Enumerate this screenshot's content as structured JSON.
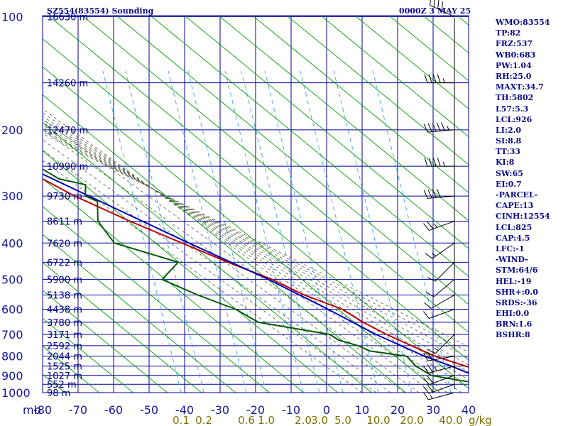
{
  "header": {
    "station": "SZ554(83554) Sounding",
    "time": "0000Z  3 MAY 25"
  },
  "indices": [
    "WMO:83554",
    "TP:82",
    "FRZ:537",
    "WB0:683",
    "PW:1.04",
    "RH:25.0",
    "MAXT:34.7",
    "TH:5802",
    "L57:5.3",
    "LCL:926",
    "LI:2.0",
    "SI:8.8",
    "TT:33",
    "KI:8",
    "SW:65",
    "EI:0.7",
    "-PARCEL-",
    "CAPE:13",
    "CINH:12554",
    "LCL:825",
    "CAP:4.5",
    "LFC:-1",
    "-WIND-",
    "STM:64/6",
    "HEL:-19",
    "SHR+:0.0",
    "SRDS:-36",
    "EHI:0.0",
    "BRN:1.6",
    "BSHR:8"
  ],
  "chart_data": {
    "type": "skew-t log-p sounding",
    "x_unit": "mb",
    "pressure_levels": [
      100,
      200,
      300,
      400,
      500,
      600,
      700,
      800,
      900,
      1000
    ],
    "temperature_ticks": [
      -80,
      -70,
      -60,
      -50,
      -40,
      -30,
      -20,
      -10,
      0,
      10,
      20,
      30,
      40
    ],
    "mixing_ratio_labels": [
      "0.1",
      "0.2",
      "0.6",
      "1.0",
      "2.0",
      "3.0",
      "5.0",
      "10.0",
      "20.0",
      "40.0"
    ],
    "mixing_ratio_unit": "g/kg",
    "height_labels": [
      {
        "p": 100,
        "text": "16630 m"
      },
      {
        "p": 150,
        "text": "14260 m"
      },
      {
        "p": 200,
        "text": "12470 m"
      },
      {
        "p": 250,
        "text": "10990 m"
      },
      {
        "p": 300,
        "text": "9730 m"
      },
      {
        "p": 350,
        "text": "8611 m"
      },
      {
        "p": 400,
        "text": "7620 m"
      },
      {
        "p": 450,
        "text": "6722 m"
      },
      {
        "p": 500,
        "text": "5900 m"
      },
      {
        "p": 550,
        "text": "5138 m"
      },
      {
        "p": 600,
        "text": "4438 m"
      },
      {
        "p": 650,
        "text": "3780 m"
      },
      {
        "p": 700,
        "text": "3171 m"
      },
      {
        "p": 750,
        "text": "2592 m"
      },
      {
        "p": 800,
        "text": "2044 m"
      },
      {
        "p": 850,
        "text": "1525 m"
      },
      {
        "p": 900,
        "text": "1027 m"
      },
      {
        "p": 950,
        "text": "552 m"
      },
      {
        "p": 1000,
        "text": "98 m"
      }
    ],
    "series": [
      {
        "color": "#c00000",
        "points": [
          [
            1000,
            21
          ],
          [
            990,
            26
          ],
          [
            975,
            29
          ],
          [
            950,
            26
          ],
          [
            925,
            24
          ],
          [
            900,
            22
          ],
          [
            875,
            19
          ],
          [
            850,
            16
          ],
          [
            800,
            10
          ],
          [
            750,
            6
          ],
          [
            700,
            2
          ],
          [
            650,
            -1.5
          ],
          [
            600,
            -4
          ],
          [
            550,
            -11
          ],
          [
            500,
            -16
          ],
          [
            450,
            -24
          ],
          [
            400,
            -32
          ],
          [
            350,
            -41
          ],
          [
            300,
            -50
          ],
          [
            250,
            -58
          ],
          [
            200,
            -66
          ],
          [
            150,
            -73
          ],
          [
            100,
            -76
          ]
        ]
      },
      {
        "color": "#0000c0",
        "points": [
          [
            1000,
            30
          ],
          [
            975,
            27
          ],
          [
            950,
            23
          ],
          [
            925,
            20
          ],
          [
            900,
            16
          ],
          [
            850,
            12
          ],
          [
            800,
            7
          ],
          [
            700,
            -1
          ],
          [
            600,
            -8
          ],
          [
            500,
            -17
          ],
          [
            400,
            -30
          ],
          [
            300,
            -46
          ],
          [
            250,
            -56
          ],
          [
            200,
            -68
          ],
          [
            150,
            -85
          ]
        ]
      },
      {
        "color": "#005a00",
        "points": [
          [
            1000,
            16.5
          ],
          [
            990,
            16
          ],
          [
            950,
            17
          ],
          [
            925,
            10
          ],
          [
            900,
            4
          ],
          [
            850,
            2
          ],
          [
            800,
            2
          ],
          [
            775,
            -7
          ],
          [
            750,
            -9
          ],
          [
            725,
            -13
          ],
          [
            700,
            -14
          ],
          [
            650,
            -31
          ],
          [
            600,
            -34
          ],
          [
            550,
            -41
          ],
          [
            500,
            -47
          ],
          [
            450,
            -38
          ],
          [
            400,
            -51
          ],
          [
            350,
            -50
          ],
          [
            310,
            -45
          ],
          [
            300,
            -47
          ],
          [
            280,
            -44
          ],
          [
            270,
            -50
          ],
          [
            255,
            -52
          ],
          [
            240,
            -62
          ],
          [
            225,
            -59
          ],
          [
            215,
            -63
          ],
          [
            200,
            -63
          ],
          [
            190,
            -64
          ],
          [
            180,
            -74
          ],
          [
            170,
            -71
          ],
          [
            162,
            -80
          ],
          [
            150,
            -84
          ]
        ]
      }
    ],
    "winds": [
      {
        "p": 1000,
        "dir": 255,
        "spd": 15
      },
      {
        "p": 950,
        "dir": 250,
        "spd": 20
      },
      {
        "p": 900,
        "dir": 250,
        "spd": 20
      },
      {
        "p": 850,
        "dir": 255,
        "spd": 25
      },
      {
        "p": 800,
        "dir": 260,
        "spd": 20
      },
      {
        "p": 700,
        "dir": 225,
        "spd": 15
      },
      {
        "p": 600,
        "dir": 250,
        "spd": 10
      },
      {
        "p": 550,
        "dir": 240,
        "spd": 10
      },
      {
        "p": 500,
        "dir": 230,
        "spd": 10
      },
      {
        "p": 450,
        "dir": 225,
        "spd": 10
      },
      {
        "p": 400,
        "dir": 235,
        "spd": 15
      },
      {
        "p": 350,
        "dir": 250,
        "spd": 25
      },
      {
        "p": 300,
        "dir": 265,
        "spd": 40
      },
      {
        "p": 250,
        "dir": 270,
        "spd": 45
      },
      {
        "p": 200,
        "dir": 265,
        "spd": 60
      },
      {
        "p": 150,
        "dir": 270,
        "spd": 45
      },
      {
        "p": 100,
        "dir": 295,
        "spd": 40
      }
    ]
  }
}
